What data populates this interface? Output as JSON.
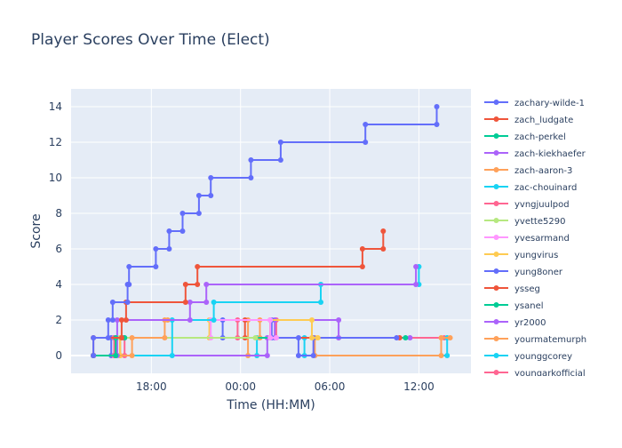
{
  "chart_data": {
    "type": "line",
    "line_shape": "step",
    "title": "Player Scores Over Time (Elect)",
    "xlabel": "Time (HH:MM)",
    "ylabel": "Score",
    "x_ticks": [
      {
        "h": 18,
        "label": "18:00"
      },
      {
        "h": 24,
        "label": "00:00"
      },
      {
        "h": 30,
        "label": "06:00"
      },
      {
        "h": 36,
        "label": "12:00"
      }
    ],
    "x_range_hours": [
      12.6,
      39.5
    ],
    "ylim": [
      -1,
      15
    ],
    "y_ticks": [
      0,
      2,
      4,
      6,
      8,
      10,
      12,
      14
    ],
    "grid": true,
    "legend_position": "right",
    "background": "#e5ecf6",
    "series": [
      {
        "name": "zachary-wilde-1",
        "color": "#636efa",
        "points": [
          [
            14.1,
            0
          ],
          [
            14.1,
            1
          ],
          [
            15.1,
            1
          ],
          [
            15.1,
            2
          ],
          [
            15.4,
            2
          ],
          [
            15.4,
            3
          ],
          [
            16.4,
            3
          ],
          [
            16.4,
            4
          ],
          [
            16.5,
            4
          ],
          [
            16.5,
            5
          ],
          [
            18.3,
            5
          ],
          [
            18.3,
            6
          ],
          [
            19.2,
            6
          ],
          [
            19.2,
            7
          ],
          [
            20.1,
            7
          ],
          [
            20.1,
            8
          ],
          [
            21.2,
            8
          ],
          [
            21.2,
            9
          ],
          [
            22.0,
            9
          ],
          [
            22.0,
            10
          ],
          [
            24.7,
            10
          ],
          [
            24.7,
            11
          ],
          [
            26.7,
            11
          ],
          [
            26.7,
            12
          ],
          [
            32.4,
            12
          ],
          [
            32.4,
            13
          ],
          [
            37.2,
            13
          ],
          [
            37.2,
            14
          ]
        ]
      },
      {
        "name": "zach_ludgate",
        "color": "#ef553b",
        "points": [
          [
            14.1,
            0
          ],
          [
            14.1,
            1
          ],
          [
            16.0,
            1
          ],
          [
            16.0,
            2
          ],
          [
            16.3,
            2
          ],
          [
            16.3,
            3
          ],
          [
            20.3,
            3
          ],
          [
            20.3,
            4
          ],
          [
            21.1,
            4
          ],
          [
            21.1,
            5
          ],
          [
            32.2,
            5
          ],
          [
            32.2,
            6
          ],
          [
            33.6,
            6
          ],
          [
            33.6,
            7
          ]
        ]
      },
      {
        "name": "zach-perkel",
        "color": "#00cc96",
        "points": [
          [
            14.1,
            0
          ],
          [
            15.6,
            0
          ],
          [
            15.6,
            1
          ],
          [
            16.2,
            1
          ]
        ]
      },
      {
        "name": "zach-kiekhaefer",
        "color": "#ab63fa",
        "points": [
          [
            14.1,
            0
          ],
          [
            15.7,
            0
          ],
          [
            15.7,
            2
          ],
          [
            20.6,
            2
          ],
          [
            20.6,
            3
          ],
          [
            21.7,
            3
          ],
          [
            21.7,
            4
          ],
          [
            35.8,
            4
          ],
          [
            35.8,
            5
          ]
        ]
      },
      {
        "name": "zach-aaron-3",
        "color": "#ffa15a",
        "points": [
          [
            14.1,
            0
          ],
          [
            16.7,
            0
          ],
          [
            16.7,
            1
          ],
          [
            18.9,
            1
          ],
          [
            18.9,
            2
          ],
          [
            19.1,
            2
          ]
        ]
      },
      {
        "name": "zac-chouinard",
        "color": "#19d3f3",
        "points": [
          [
            14.1,
            0
          ],
          [
            19.4,
            0
          ],
          [
            19.4,
            2
          ],
          [
            22.2,
            2
          ],
          [
            22.2,
            3
          ],
          [
            29.4,
            3
          ],
          [
            29.4,
            4
          ],
          [
            36.0,
            4
          ],
          [
            36.0,
            5
          ]
        ]
      },
      {
        "name": "yvngjuulpod",
        "color": "#ff6692",
        "points": [
          [
            14.1,
            0
          ],
          [
            15.5,
            0
          ],
          [
            15.5,
            1
          ],
          [
            16.1,
            1
          ]
        ]
      },
      {
        "name": "yvette5290",
        "color": "#b6e880",
        "points": [
          [
            14.1,
            0
          ],
          [
            15.7,
            0
          ],
          [
            15.7,
            1
          ],
          [
            25.0,
            1
          ]
        ]
      },
      {
        "name": "yvesarmand",
        "color": "#ff97ff",
        "points": [
          [
            14.1,
            0
          ],
          [
            15.5,
            0
          ],
          [
            15.5,
            1
          ],
          [
            22.0,
            1
          ],
          [
            22.0,
            2
          ],
          [
            26.0,
            2
          ],
          [
            26.0,
            1
          ],
          [
            26.4,
            1
          ]
        ]
      },
      {
        "name": "yungvirus",
        "color": "#fecb52",
        "points": [
          [
            14.1,
            0
          ],
          [
            15.9,
            0
          ],
          [
            15.9,
            1
          ],
          [
            21.9,
            1
          ],
          [
            21.9,
            2
          ],
          [
            28.8,
            2
          ],
          [
            28.8,
            1
          ],
          [
            29.2,
            1
          ]
        ]
      },
      {
        "name": "yung8oner",
        "color": "#636efa",
        "points": [
          [
            14.1,
            0
          ],
          [
            15.3,
            0
          ],
          [
            15.3,
            1
          ],
          [
            22.8,
            1
          ],
          [
            22.8,
            2
          ],
          [
            26.1,
            2
          ],
          [
            26.1,
            1
          ],
          [
            27.9,
            1
          ],
          [
            27.9,
            0
          ],
          [
            28.9,
            0
          ],
          [
            28.9,
            1
          ],
          [
            34.5,
            1
          ]
        ]
      },
      {
        "name": "ysseg",
        "color": "#ef553b",
        "points": [
          [
            14.1,
            0
          ],
          [
            15.9,
            0
          ],
          [
            15.9,
            1
          ],
          [
            24.3,
            1
          ],
          [
            24.3,
            2
          ],
          [
            26.0,
            2
          ],
          [
            26.0,
            1
          ],
          [
            34.7,
            1
          ]
        ]
      },
      {
        "name": "ysanel",
        "color": "#00cc96",
        "points": [
          [
            14.1,
            0
          ],
          [
            15.6,
            0
          ],
          [
            15.6,
            1
          ],
          [
            35.1,
            1
          ]
        ]
      },
      {
        "name": "yr2000",
        "color": "#ab63fa",
        "points": [
          [
            14.1,
            0
          ],
          [
            25.8,
            0
          ],
          [
            25.8,
            1
          ],
          [
            26.3,
            1
          ],
          [
            26.3,
            2
          ],
          [
            30.6,
            2
          ],
          [
            30.6,
            1
          ],
          [
            35.4,
            1
          ]
        ]
      },
      {
        "name": "yourmatemurph",
        "color": "#ffa15a",
        "points": [
          [
            14.1,
            0
          ],
          [
            24.5,
            0
          ],
          [
            24.5,
            2
          ],
          [
            25.3,
            2
          ],
          [
            25.3,
            1
          ],
          [
            29.0,
            1
          ],
          [
            29.0,
            0
          ],
          [
            37.5,
            0
          ],
          [
            37.5,
            1
          ],
          [
            38.1,
            1
          ]
        ]
      },
      {
        "name": "younggcorey",
        "color": "#19d3f3",
        "points": [
          [
            14.1,
            0
          ],
          [
            25.1,
            0
          ],
          [
            25.1,
            1
          ],
          [
            28.3,
            1
          ],
          [
            28.3,
            0
          ],
          [
            37.9,
            0
          ],
          [
            37.9,
            1
          ]
        ]
      },
      {
        "name": "youngarkofficial",
        "color": "#ff6692",
        "points": [
          [
            14.1,
            0
          ],
          [
            16.2,
            0
          ],
          [
            16.2,
            1
          ],
          [
            23.8,
            1
          ],
          [
            23.8,
            2
          ],
          [
            26.4,
            2
          ],
          [
            26.4,
            1
          ],
          [
            37.7,
            1
          ]
        ]
      }
    ]
  }
}
